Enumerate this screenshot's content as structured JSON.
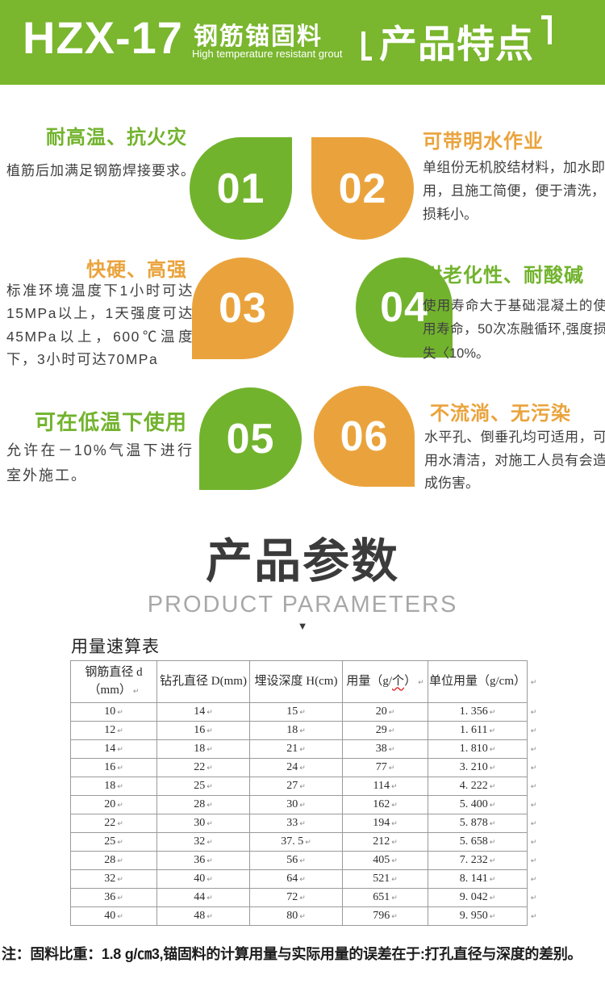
{
  "colors": {
    "green_header": "#7ab62e",
    "green": "#72b32d",
    "orange": "#eaa33c",
    "title_dark": "#3b3b3b",
    "subtitle_gray": "#a8a8a8"
  },
  "header": {
    "model": "HZX-17",
    "product_cn": "钢筋锚固料",
    "product_en": "High temperature resistant grout",
    "section_title": "产品特点"
  },
  "features": [
    {
      "num": "01",
      "title": "耐高温、抗火灾",
      "desc": "植筋后加满足钢筋焊接要求。"
    },
    {
      "num": "02",
      "title": "可带明水作业",
      "desc": "单组份无机胶结材料，加水即用，且施工简便，便于清洗，损耗小。"
    },
    {
      "num": "03",
      "title": "快硬、高强",
      "desc": "标准环境温度下1小时可达15MPa以上，1天强度可达45MPa以上，600℃温度下，3小时可达70MPa"
    },
    {
      "num": "04",
      "title": "耐老化性、耐酸碱",
      "desc": "使用寿命大于基础混凝土的使用寿命，50次冻融循环,强度损失〈10%。"
    },
    {
      "num": "05",
      "title": "可在低温下使用",
      "desc": "允许在－10%气温下进行室外施工。"
    },
    {
      "num": "06",
      "title": "不流淌、无污染",
      "desc": "水平孔、倒垂孔均可适用，可用水清洁，对施工人员有会造成伤害。"
    }
  ],
  "params_section": {
    "title": "产品参数",
    "subtitle": "PRODUCT PARAMETERS",
    "arrow": "▼",
    "table_label": "用量速算表"
  },
  "table": {
    "end_mark": "↵",
    "columns": [
      {
        "text": "钢筋直径 d\n（mm）",
        "mark": true
      },
      {
        "text": "钻孔直径 D(mm)",
        "mark": false
      },
      {
        "text": "埋设深度 H(cm)",
        "mark": false
      },
      {
        "text": "用量（g/",
        "wavy": "个",
        "after": "）",
        "mark": true
      },
      {
        "text": "单位用量（g/cm）",
        "mark": false
      }
    ],
    "rows": [
      [
        "10",
        "14",
        "15",
        "20",
        "1. 356"
      ],
      [
        "12",
        "16",
        "18",
        "29",
        "1. 611"
      ],
      [
        "14",
        "18",
        "21",
        "38",
        "1. 810"
      ],
      [
        "16",
        "22",
        "24",
        "77",
        "3. 210"
      ],
      [
        "18",
        "25",
        "27",
        "114",
        "4. 222"
      ],
      [
        "20",
        "28",
        "30",
        "162",
        "5. 400"
      ],
      [
        "22",
        "30",
        "33",
        "194",
        "5. 878"
      ],
      [
        "25",
        "32",
        "37. 5",
        "212",
        "5. 658"
      ],
      [
        "28",
        "36",
        "56",
        "405",
        "7. 232"
      ],
      [
        "32",
        "40",
        "64",
        "521",
        "8. 141"
      ],
      [
        "36",
        "44",
        "72",
        "651",
        "9. 042"
      ],
      [
        "40",
        "48",
        "80",
        "796",
        "9. 950"
      ]
    ]
  },
  "note": "注：固料比重：1.8 g/㎝3,锚固料的计算用量与实际用量的误差在于:打孔直径与深度的差别。"
}
